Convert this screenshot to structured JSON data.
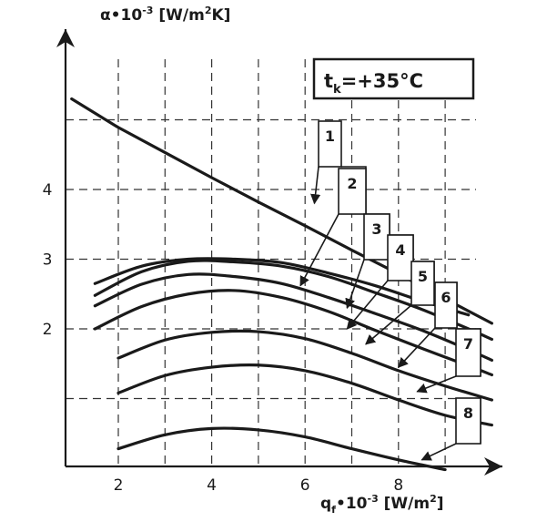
{
  "chart_data": {
    "type": "line",
    "title": "",
    "xlabel": "q_f·10^-3 [W/m^2]",
    "ylabel": "α·10^-3 [W/m^2K]",
    "xlabel_parts": {
      "main": "q",
      "sub": "f",
      "mid": "•10",
      "sup": "-3",
      "unit_pre": " [W/m",
      "unit_sup": "2",
      "unit_post": "]"
    },
    "ylabel_parts": {
      "main": "α•10",
      "sup": "-3",
      "unit_pre": " [W/m",
      "unit_sup": "2",
      "unit_post": "K]"
    },
    "annotation": {
      "main": "t",
      "sub": "k",
      "rest": "=+35°C"
    },
    "xlim": [
      1,
      10
    ],
    "ylim": [
      0,
      5.5
    ],
    "x_ticks": [
      2,
      4,
      6,
      8
    ],
    "x_tick_labels": [
      "2",
      "4",
      "6",
      "8"
    ],
    "y_ticks": [
      2,
      3,
      4
    ],
    "y_tick_labels": [
      "2",
      "3",
      "4"
    ],
    "x_grid": [
      2,
      3,
      4,
      5,
      6,
      7,
      8,
      9
    ],
    "y_grid": [
      1,
      2,
      3,
      4,
      5
    ],
    "grid": true,
    "series": [
      {
        "name": "1",
        "x": [
          1,
          2,
          3,
          4,
          5,
          6,
          7,
          8,
          9,
          10
        ],
        "y": [
          5.3,
          4.89,
          4.53,
          4.17,
          3.82,
          3.48,
          3.13,
          2.79,
          2.43,
          2.08
        ]
      },
      {
        "name": "2",
        "x": [
          1.5,
          2.5,
          3.5,
          4.5,
          5.5,
          6.5,
          7.5,
          8.5,
          9.5
        ],
        "y": [
          2.65,
          2.9,
          3.0,
          3.0,
          2.95,
          2.8,
          2.62,
          2.4,
          2.2
        ]
      },
      {
        "name": "3",
        "x": [
          1.5,
          2.5,
          3.5,
          4.5,
          5.5,
          6.5,
          7.5,
          8.5,
          9.5,
          10
        ],
        "y": [
          2.48,
          2.82,
          2.97,
          2.96,
          2.9,
          2.75,
          2.52,
          2.28,
          2.0,
          1.85
        ]
      },
      {
        "name": "4",
        "x": [
          1.5,
          2.5,
          3.5,
          4.5,
          5.5,
          6.5,
          7.5,
          8.5,
          9.5,
          10
        ],
        "y": [
          2.33,
          2.64,
          2.78,
          2.75,
          2.65,
          2.45,
          2.22,
          1.98,
          1.7,
          1.55
        ]
      },
      {
        "name": "5",
        "x": [
          1.5,
          2.5,
          3.5,
          4.5,
          5.5,
          6.5,
          7.5,
          8.5,
          9.5,
          10
        ],
        "y": [
          2.0,
          2.32,
          2.5,
          2.55,
          2.45,
          2.25,
          1.98,
          1.72,
          1.47,
          1.34
        ]
      },
      {
        "name": "6",
        "x": [
          2,
          3,
          4,
          5,
          6,
          7,
          8,
          9,
          10
        ],
        "y": [
          1.58,
          1.84,
          1.95,
          1.96,
          1.86,
          1.65,
          1.4,
          1.18,
          0.98
        ]
      },
      {
        "name": "7",
        "x": [
          2,
          3,
          4,
          5,
          6,
          7,
          8,
          9,
          10
        ],
        "y": [
          1.08,
          1.33,
          1.45,
          1.48,
          1.4,
          1.22,
          0.98,
          0.76,
          0.62
        ]
      },
      {
        "name": "8",
        "x": [
          2,
          3,
          4,
          5,
          6,
          7,
          8,
          9
        ],
        "y": [
          0.28,
          0.48,
          0.57,
          0.55,
          0.45,
          0.28,
          0.12,
          -0.02
        ]
      }
    ],
    "callouts": [
      {
        "label": "1",
        "target": [
          6.2,
          3.8
        ]
      },
      {
        "label": "2",
        "target": [
          5.9,
          2.62
        ]
      },
      {
        "label": "3",
        "target": [
          6.9,
          2.3
        ]
      },
      {
        "label": "4",
        "target": [
          6.9,
          2.0
        ]
      },
      {
        "label": "5",
        "target": [
          7.3,
          1.78
        ]
      },
      {
        "label": "6",
        "target": [
          8.0,
          1.45
        ]
      },
      {
        "label": "7",
        "target": [
          8.4,
          1.1
        ]
      },
      {
        "label": "8",
        "target": [
          8.5,
          0.12
        ]
      }
    ]
  }
}
